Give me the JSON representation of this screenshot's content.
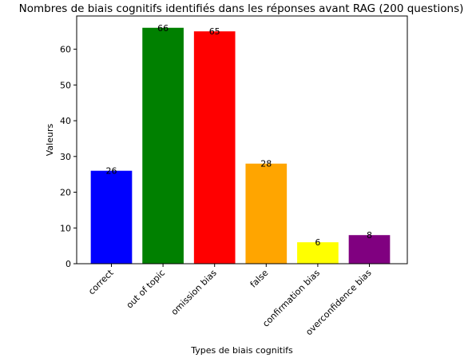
{
  "chart_data": {
    "type": "bar",
    "title": "Nombres de biais cognitifs identifiés dans les réponses avant RAG (200 questions)",
    "xlabel": "Types de biais cognitifs",
    "ylabel": "Valeurs",
    "categories": [
      "correct",
      "out of topic",
      "omission bias",
      "false",
      "confirmation bias",
      "overconfidence bias"
    ],
    "values": [
      26,
      66,
      65,
      28,
      6,
      8
    ],
    "colors": [
      "#0000ff",
      "#008000",
      "#ff0000",
      "#ffa500",
      "#ffff00",
      "#800080"
    ],
    "ylim": [
      0,
      69.3
    ],
    "yticks": [
      0,
      10,
      20,
      30,
      40,
      50,
      60
    ],
    "grid": false,
    "legend": false
  }
}
